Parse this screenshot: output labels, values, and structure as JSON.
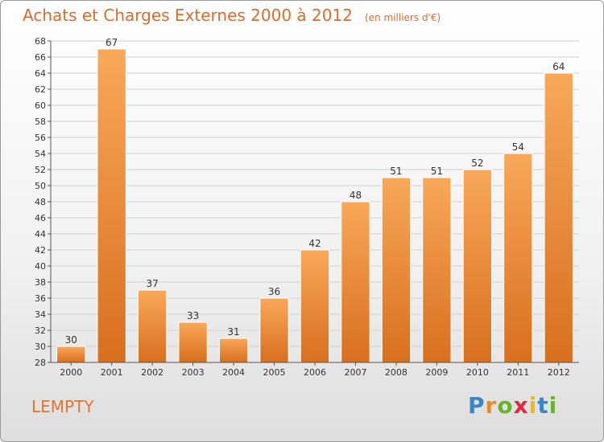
{
  "header": {
    "title": "Achats et Charges Externes 2000 à 2012",
    "unit": "(en milliers d'€)"
  },
  "footer": {
    "commune": "LEMPTY"
  },
  "logo": {
    "letters": [
      {
        "ch": "P",
        "color": "#3d86c6"
      },
      {
        "ch": "r",
        "color": "#f08a1c"
      },
      {
        "ch": "o",
        "color": "#6ab42d"
      },
      {
        "ch": "x",
        "color": "#e2293a"
      },
      {
        "ch": "i",
        "color": "#f3b90d"
      },
      {
        "ch": "t",
        "color": "#3d86c6"
      },
      {
        "ch": "i",
        "color": "#6ab42d"
      }
    ]
  },
  "chart_data": {
    "type": "bar",
    "categories": [
      "2000",
      "2001",
      "2002",
      "2003",
      "2004",
      "2005",
      "2006",
      "2007",
      "2008",
      "2009",
      "2010",
      "2011",
      "2012"
    ],
    "values": [
      30,
      67,
      37,
      33,
      31,
      36,
      42,
      48,
      51,
      51,
      52,
      54,
      64
    ],
    "title": "Achats et Charges Externes 2000 à 2012",
    "unit": "(en milliers d'€)",
    "ylim": [
      28,
      68
    ],
    "ytick_step": 2,
    "grid": true,
    "bar_color": "#f0913c"
  }
}
